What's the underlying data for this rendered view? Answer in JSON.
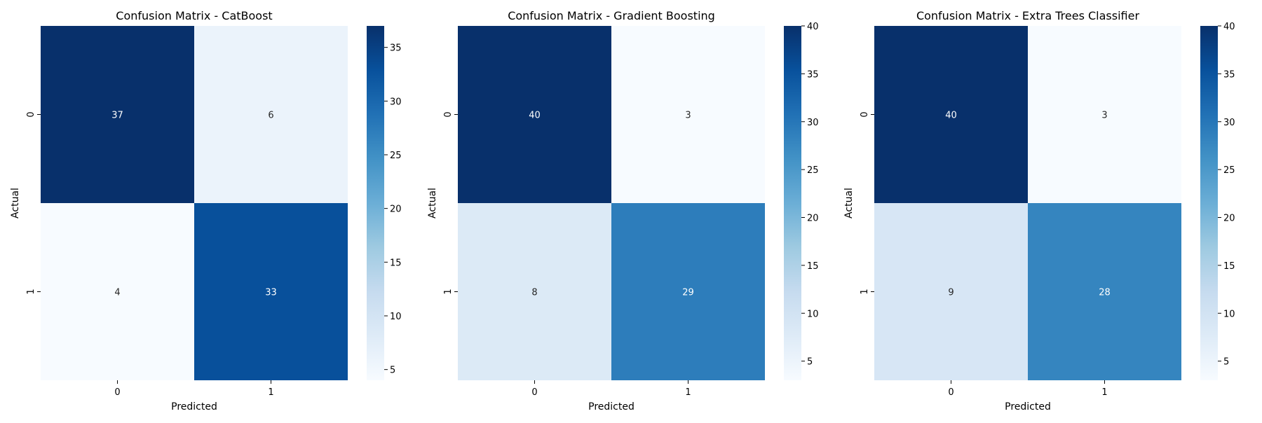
{
  "chart_data": [
    {
      "type": "heatmap",
      "title": "Confusion Matrix - CatBoost",
      "xlabel": "Predicted",
      "ylabel": "Actual",
      "x_categories": [
        "0",
        "1"
      ],
      "y_categories": [
        "0",
        "1"
      ],
      "values": [
        [
          37,
          6
        ],
        [
          4,
          33
        ]
      ],
      "colorbar": {
        "range": [
          4,
          37
        ],
        "ticks": [
          5,
          10,
          15,
          20,
          25,
          30,
          35
        ]
      },
      "colormap": "Blues"
    },
    {
      "type": "heatmap",
      "title": "Confusion Matrix - Gradient Boosting",
      "xlabel": "Predicted",
      "ylabel": "Actual",
      "x_categories": [
        "0",
        "1"
      ],
      "y_categories": [
        "0",
        "1"
      ],
      "values": [
        [
          40,
          3
        ],
        [
          8,
          29
        ]
      ],
      "colorbar": {
        "range": [
          3,
          40
        ],
        "ticks": [
          5,
          10,
          15,
          20,
          25,
          30,
          35,
          40
        ]
      },
      "colormap": "Blues"
    },
    {
      "type": "heatmap",
      "title": "Confusion Matrix - Extra Trees Classifier",
      "xlabel": "Predicted",
      "ylabel": "Actual",
      "x_categories": [
        "0",
        "1"
      ],
      "y_categories": [
        "0",
        "1"
      ],
      "values": [
        [
          40,
          3
        ],
        [
          9,
          28
        ]
      ],
      "colorbar": {
        "range": [
          3,
          40
        ],
        "ticks": [
          5,
          10,
          15,
          20,
          25,
          30,
          35,
          40
        ]
      },
      "colormap": "Blues"
    }
  ]
}
